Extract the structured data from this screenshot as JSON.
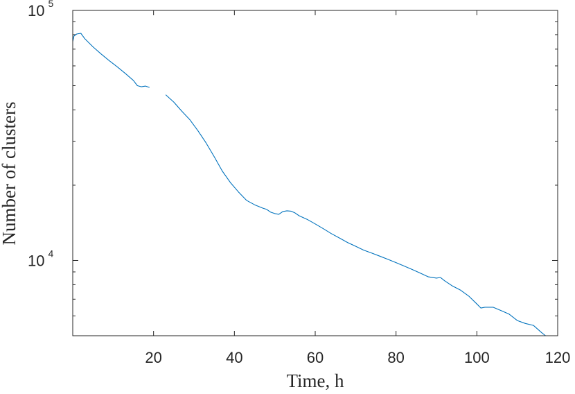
{
  "chart_data": {
    "type": "line",
    "xlabel": "Time, h",
    "ylabel": "Number of clusters",
    "xlim": [
      0,
      120
    ],
    "ylim": [
      5000,
      100000
    ],
    "yscale": "log",
    "grid": false,
    "x_ticks": [
      20,
      40,
      60,
      80,
      100,
      120
    ],
    "y_ticks": [
      {
        "base": "10",
        "exp": "4",
        "value": 10000
      },
      {
        "base": "10",
        "exp": "5",
        "value": 100000
      }
    ],
    "line_color": "#0072BD",
    "series": [
      {
        "segments": [
          {
            "x": [
              0,
              0.3,
              1,
              2,
              3,
              5,
              7,
              9,
              11,
              13,
              15,
              16,
              17,
              18,
              19
            ],
            "y": [
              75000,
              79000,
              80500,
              81000,
              77000,
              71500,
              67000,
              63000,
              59500,
              56000,
              52500,
              50000,
              49500,
              49800,
              49200
            ]
          },
          {
            "x": [
              23,
              25,
              27,
              29,
              31,
              33,
              35,
              37,
              39,
              41,
              43,
              45,
              47,
              48,
              49,
              50,
              51,
              52,
              53,
              54,
              55,
              56,
              58,
              60,
              62,
              64,
              66,
              68,
              70,
              72,
              74,
              76,
              78,
              80,
              82,
              84,
              86,
              88,
              90,
              91,
              92,
              94,
              96,
              98,
              100,
              101,
              102,
              104,
              106,
              108,
              110,
              112,
              114,
              116,
              117
            ],
            "y": [
              46000,
              43000,
              39500,
              36500,
              33000,
              29500,
              26000,
              22800,
              20500,
              18800,
              17400,
              16700,
              16200,
              16000,
              15600,
              15400,
              15300,
              15700,
              15800,
              15750,
              15500,
              15100,
              14600,
              14000,
              13400,
              12800,
              12300,
              11800,
              11400,
              11000,
              10700,
              10400,
              10100,
              9800,
              9500,
              9200,
              8900,
              8600,
              8500,
              8550,
              8300,
              7900,
              7600,
              7200,
              6700,
              6450,
              6500,
              6500,
              6300,
              6100,
              5750,
              5600,
              5500,
              5150,
              5000
            ]
          }
        ]
      }
    ]
  }
}
